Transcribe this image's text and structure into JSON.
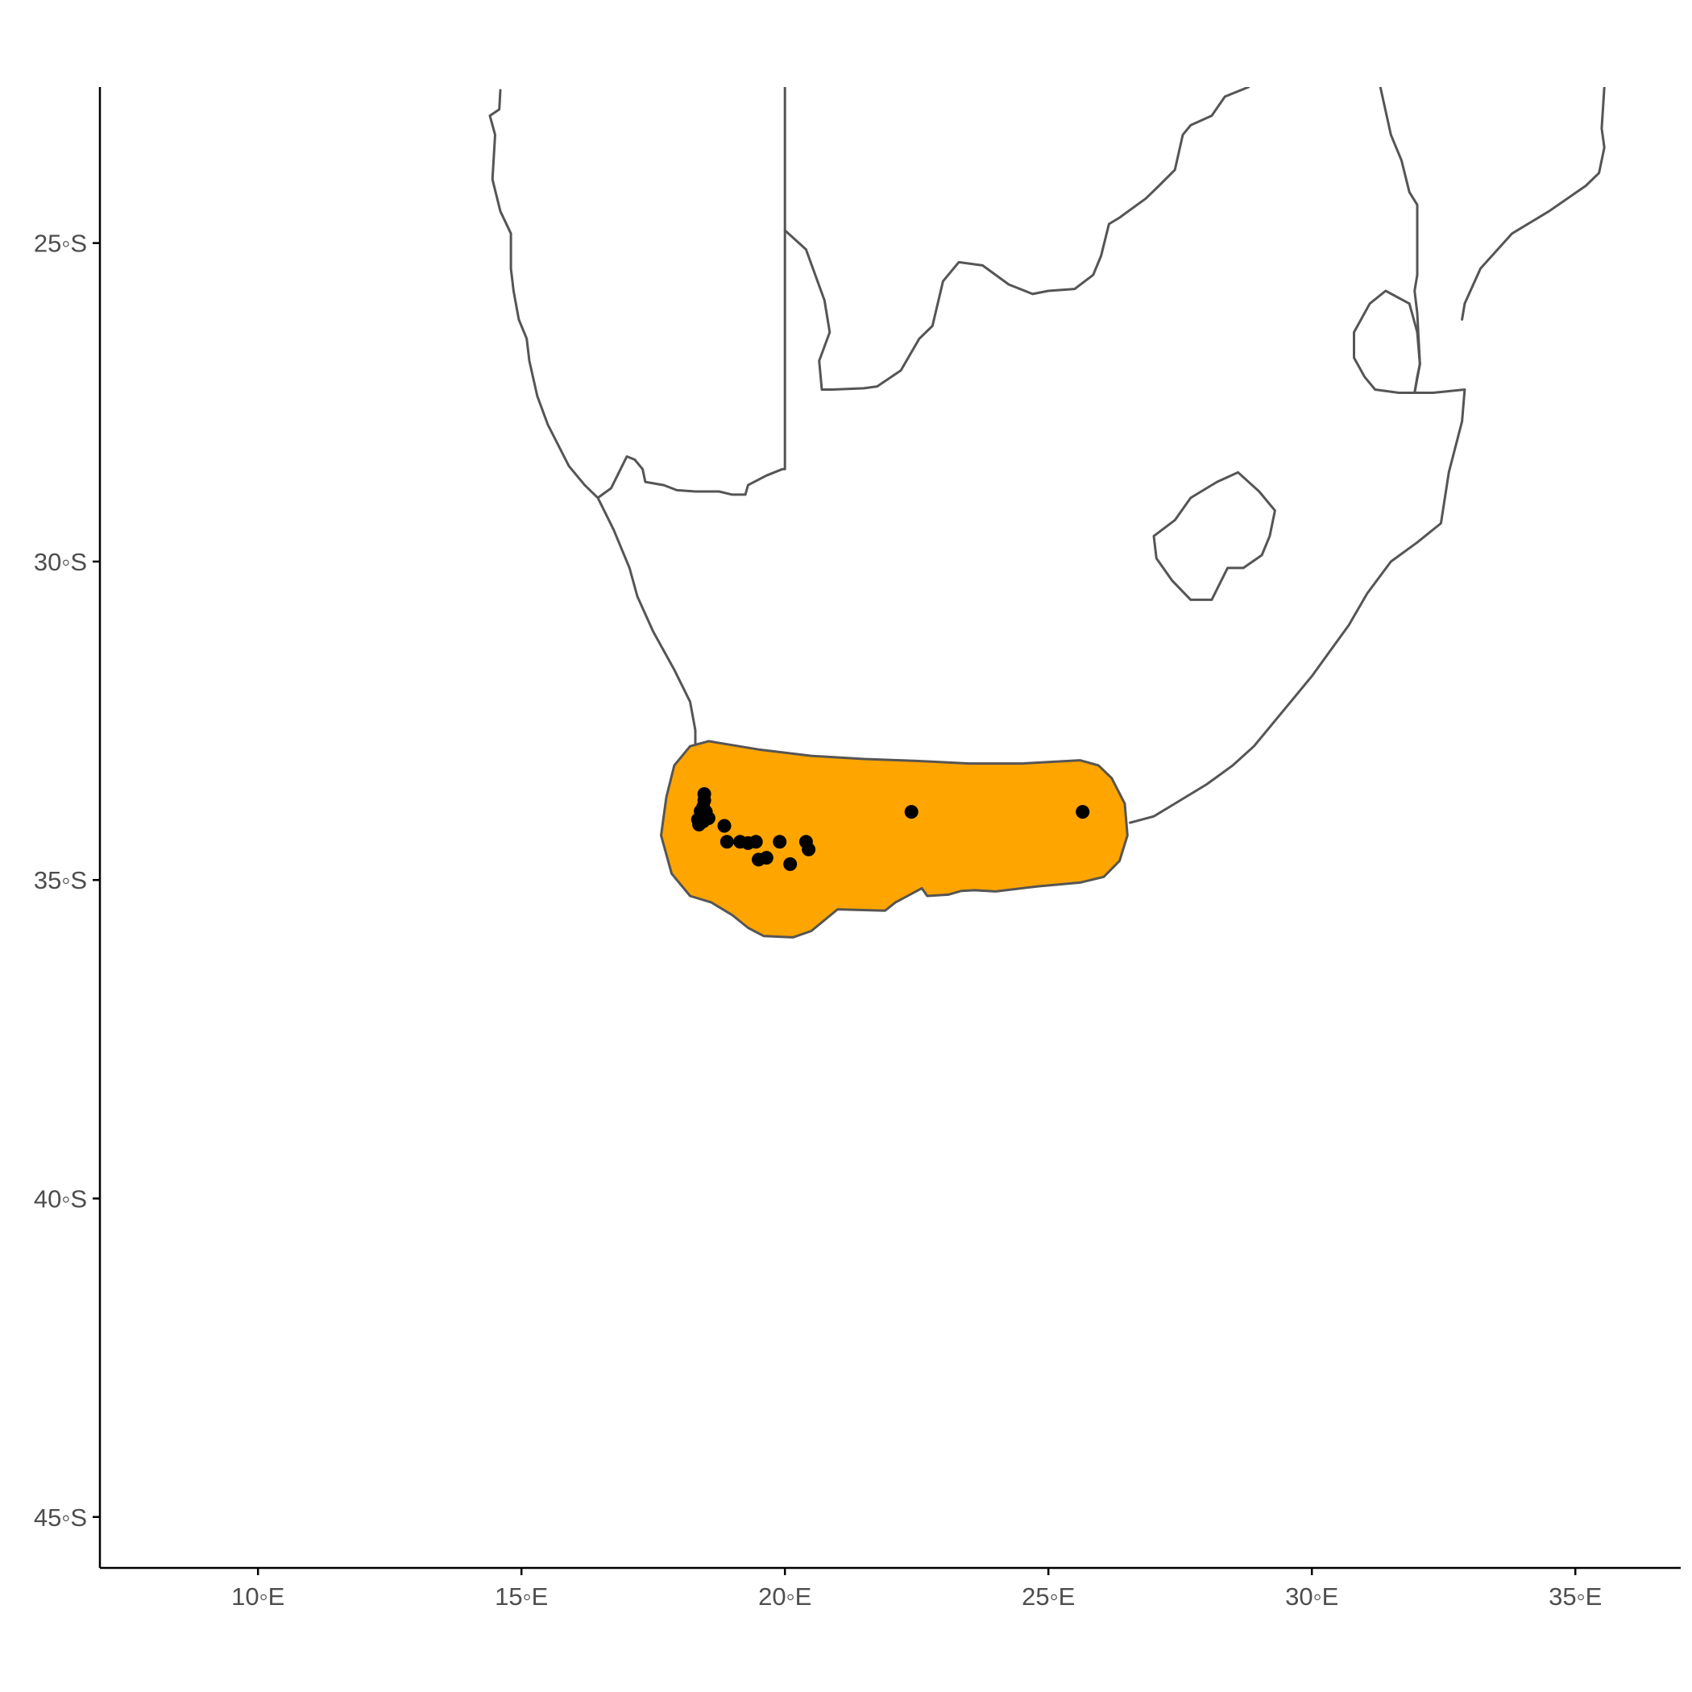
{
  "chart_data": {
    "type": "scatter",
    "title": "",
    "xlabel": "",
    "ylabel": "",
    "xlim": [
      7,
      37
    ],
    "ylim": [
      -45.8,
      -22.55
    ],
    "x_ticks": [
      {
        "value": 10,
        "label": "10◦E"
      },
      {
        "value": 15,
        "label": "15◦E"
      },
      {
        "value": 20,
        "label": "20◦E"
      },
      {
        "value": 25,
        "label": "25◦E"
      },
      {
        "value": 30,
        "label": "30◦E"
      },
      {
        "value": 35,
        "label": "35◦E"
      }
    ],
    "y_ticks": [
      {
        "value": -25,
        "label": "25◦S"
      },
      {
        "value": -30,
        "label": "30◦S"
      },
      {
        "value": -35,
        "label": "35◦S"
      },
      {
        "value": -40,
        "label": "40◦S"
      },
      {
        "value": -45,
        "label": "45◦S"
      }
    ],
    "grid": false,
    "legend": "none",
    "colors": {
      "range_fill": "#FFA500",
      "outline": "#555555",
      "points": "#000000",
      "axis": "#000000",
      "tick_text": "#4d4d4d"
    },
    "points": [
      {
        "lon": 18.47,
        "lat": -33.65
      },
      {
        "lon": 18.47,
        "lat": -33.75
      },
      {
        "lon": 18.45,
        "lat": -33.85
      },
      {
        "lon": 18.4,
        "lat": -33.92
      },
      {
        "lon": 18.5,
        "lat": -33.93
      },
      {
        "lon": 18.42,
        "lat": -34.0
      },
      {
        "lon": 18.55,
        "lat": -34.03
      },
      {
        "lon": 18.35,
        "lat": -34.05
      },
      {
        "lon": 18.45,
        "lat": -34.08
      },
      {
        "lon": 18.37,
        "lat": -34.13
      },
      {
        "lon": 18.85,
        "lat": -34.15
      },
      {
        "lon": 18.9,
        "lat": -34.4
      },
      {
        "lon": 19.15,
        "lat": -34.4
      },
      {
        "lon": 19.3,
        "lat": -34.42
      },
      {
        "lon": 19.45,
        "lat": -34.4
      },
      {
        "lon": 19.65,
        "lat": -34.65
      },
      {
        "lon": 19.5,
        "lat": -34.68
      },
      {
        "lon": 19.9,
        "lat": -34.4
      },
      {
        "lon": 20.1,
        "lat": -34.75
      },
      {
        "lon": 20.4,
        "lat": -34.4
      },
      {
        "lon": 20.45,
        "lat": -34.52
      },
      {
        "lon": 22.4,
        "lat": -33.93
      },
      {
        "lon": 25.65,
        "lat": -33.93
      }
    ],
    "range_polygon": [
      [
        18.2,
        -32.9
      ],
      [
        18.55,
        -32.82
      ],
      [
        19.5,
        -32.95
      ],
      [
        20.5,
        -33.05
      ],
      [
        21.5,
        -33.1
      ],
      [
        22.5,
        -33.13
      ],
      [
        23.5,
        -33.17
      ],
      [
        24.5,
        -33.17
      ],
      [
        25.6,
        -33.12
      ],
      [
        25.95,
        -33.2
      ],
      [
        26.2,
        -33.4
      ],
      [
        26.45,
        -33.8
      ],
      [
        26.5,
        -34.3
      ],
      [
        26.35,
        -34.7
      ],
      [
        26.05,
        -34.95
      ],
      [
        25.6,
        -35.04
      ],
      [
        24.8,
        -35.1
      ],
      [
        24.0,
        -35.18
      ],
      [
        23.6,
        -35.16
      ],
      [
        23.35,
        -35.17
      ],
      [
        23.1,
        -35.23
      ],
      [
        22.7,
        -35.25
      ],
      [
        22.6,
        -35.13
      ],
      [
        22.1,
        -35.35
      ],
      [
        21.9,
        -35.48
      ],
      [
        21.0,
        -35.46
      ],
      [
        20.5,
        -35.8
      ],
      [
        20.15,
        -35.9
      ],
      [
        19.6,
        -35.88
      ],
      [
        19.3,
        -35.75
      ],
      [
        19.0,
        -35.55
      ],
      [
        18.8,
        -35.45
      ],
      [
        18.6,
        -35.35
      ],
      [
        18.2,
        -35.25
      ],
      [
        17.85,
        -34.9
      ],
      [
        17.65,
        -34.3
      ],
      [
        17.75,
        -33.7
      ],
      [
        17.9,
        -33.2
      ]
    ],
    "regions": [
      {
        "name": "west coast to Walvis",
        "coords": [
          [
            14.6,
            -22.6
          ],
          [
            14.58,
            -22.9
          ],
          [
            14.4,
            -23.0
          ],
          [
            14.5,
            -23.3
          ],
          [
            14.45,
            -24.0
          ],
          [
            14.6,
            -24.5
          ],
          [
            14.8,
            -24.85
          ],
          [
            14.8,
            -25.4
          ],
          [
            14.85,
            -25.75
          ],
          [
            14.95,
            -26.2
          ],
          [
            15.1,
            -26.5
          ],
          [
            15.15,
            -26.85
          ],
          [
            15.3,
            -27.4
          ],
          [
            15.5,
            -27.85
          ],
          [
            15.9,
            -28.5
          ],
          [
            16.2,
            -28.8
          ],
          [
            16.45,
            -29.0
          ],
          [
            16.75,
            -29.5
          ],
          [
            17.05,
            -30.1
          ],
          [
            17.2,
            -30.55
          ],
          [
            17.5,
            -31.1
          ],
          [
            17.9,
            -31.7
          ],
          [
            18.2,
            -32.2
          ],
          [
            18.3,
            -32.65
          ],
          [
            18.3,
            -32.85
          ]
        ]
      },
      {
        "name": "Namibia border segment",
        "coords": [
          [
            16.45,
            -29.0
          ],
          [
            16.7,
            -28.85
          ],
          [
            16.85,
            -28.6
          ],
          [
            17.0,
            -28.35
          ],
          [
            17.15,
            -28.4
          ],
          [
            17.3,
            -28.55
          ],
          [
            17.35,
            -28.75
          ],
          [
            17.7,
            -28.8
          ],
          [
            17.95,
            -28.88
          ],
          [
            18.3,
            -28.9
          ],
          [
            18.75,
            -28.9
          ],
          [
            19.0,
            -28.95
          ],
          [
            19.25,
            -28.95
          ],
          [
            19.3,
            -28.8
          ],
          [
            19.65,
            -28.65
          ],
          [
            19.95,
            -28.55
          ],
          [
            20.0,
            -28.55
          ],
          [
            20.0,
            -22.55
          ]
        ]
      },
      {
        "name": "Botswana south border",
        "coords": [
          [
            20.0,
            -24.8
          ],
          [
            20.4,
            -25.1
          ],
          [
            20.75,
            -25.9
          ],
          [
            20.85,
            -26.4
          ],
          [
            20.65,
            -26.85
          ],
          [
            20.7,
            -27.3
          ],
          [
            20.9,
            -27.3
          ],
          [
            21.5,
            -27.28
          ],
          [
            21.75,
            -27.25
          ],
          [
            22.2,
            -27.0
          ],
          [
            22.55,
            -26.5
          ],
          [
            22.8,
            -26.3
          ],
          [
            23.0,
            -25.6
          ],
          [
            23.3,
            -25.3
          ],
          [
            23.75,
            -25.35
          ],
          [
            24.25,
            -25.65
          ],
          [
            24.7,
            -25.8
          ],
          [
            25.0,
            -25.75
          ],
          [
            25.5,
            -25.72
          ],
          [
            25.85,
            -25.5
          ],
          [
            26.0,
            -25.2
          ],
          [
            26.15,
            -24.7
          ],
          [
            26.35,
            -24.6
          ],
          [
            26.85,
            -24.3
          ],
          [
            27.1,
            -24.1
          ],
          [
            27.4,
            -23.85
          ],
          [
            27.55,
            -23.3
          ],
          [
            27.7,
            -23.15
          ],
          [
            28.1,
            -23.0
          ],
          [
            28.35,
            -22.7
          ],
          [
            28.8,
            -22.55
          ]
        ]
      },
      {
        "name": "Mozambique border and east coast",
        "coords": [
          [
            31.3,
            -22.55
          ],
          [
            31.5,
            -23.3
          ],
          [
            31.7,
            -23.7
          ],
          [
            31.85,
            -24.2
          ],
          [
            32.0,
            -24.4
          ],
          [
            32.0,
            -25.5
          ],
          [
            31.95,
            -25.75
          ],
          [
            32.0,
            -26.1
          ],
          [
            32.05,
            -26.9
          ],
          [
            32.0,
            -27.1
          ],
          [
            31.95,
            -27.35
          ],
          [
            32.3,
            -27.35
          ],
          [
            32.9,
            -27.3
          ],
          [
            32.85,
            -27.8
          ],
          [
            32.6,
            -28.6
          ],
          [
            32.45,
            -29.4
          ],
          [
            32.0,
            -29.7
          ],
          [
            31.5,
            -30.0
          ],
          [
            31.05,
            -30.5
          ],
          [
            30.7,
            -31.0
          ],
          [
            30.0,
            -31.8
          ],
          [
            29.6,
            -32.2
          ],
          [
            28.9,
            -32.9
          ],
          [
            28.5,
            -33.2
          ],
          [
            28.0,
            -33.5
          ],
          [
            27.4,
            -33.8
          ],
          [
            27.0,
            -34.0
          ],
          [
            26.55,
            -34.1
          ]
        ]
      },
      {
        "name": "Mozambique coast north",
        "coords": [
          [
            32.85,
            -26.2
          ],
          [
            32.9,
            -25.95
          ],
          [
            33.2,
            -25.4
          ],
          [
            33.8,
            -24.85
          ],
          [
            34.5,
            -24.5
          ],
          [
            35.2,
            -24.1
          ],
          [
            35.45,
            -23.9
          ],
          [
            35.55,
            -23.5
          ],
          [
            35.5,
            -23.2
          ],
          [
            35.55,
            -22.55
          ]
        ]
      },
      {
        "name": "Eswatini",
        "coords": [
          [
            31.85,
            -25.95
          ],
          [
            31.4,
            -25.75
          ],
          [
            31.1,
            -25.95
          ],
          [
            30.8,
            -26.4
          ],
          [
            30.8,
            -26.8
          ],
          [
            31.0,
            -27.1
          ],
          [
            31.2,
            -27.3
          ],
          [
            31.65,
            -27.35
          ],
          [
            31.95,
            -27.35
          ],
          [
            32.05,
            -26.9
          ],
          [
            32.0,
            -26.4
          ],
          [
            31.9,
            -26.1
          ],
          [
            31.85,
            -25.95
          ]
        ]
      },
      {
        "name": "Lesotho",
        "coords": [
          [
            28.6,
            -28.6
          ],
          [
            29.0,
            -28.9
          ],
          [
            29.3,
            -29.2
          ],
          [
            29.2,
            -29.6
          ],
          [
            29.05,
            -29.9
          ],
          [
            28.7,
            -30.1
          ],
          [
            28.4,
            -30.1
          ],
          [
            28.1,
            -30.6
          ],
          [
            27.7,
            -30.6
          ],
          [
            27.35,
            -30.3
          ],
          [
            27.05,
            -29.95
          ],
          [
            27.0,
            -29.6
          ],
          [
            27.4,
            -29.35
          ],
          [
            27.7,
            -29.0
          ],
          [
            28.2,
            -28.75
          ],
          [
            28.6,
            -28.6
          ]
        ]
      }
    ]
  }
}
